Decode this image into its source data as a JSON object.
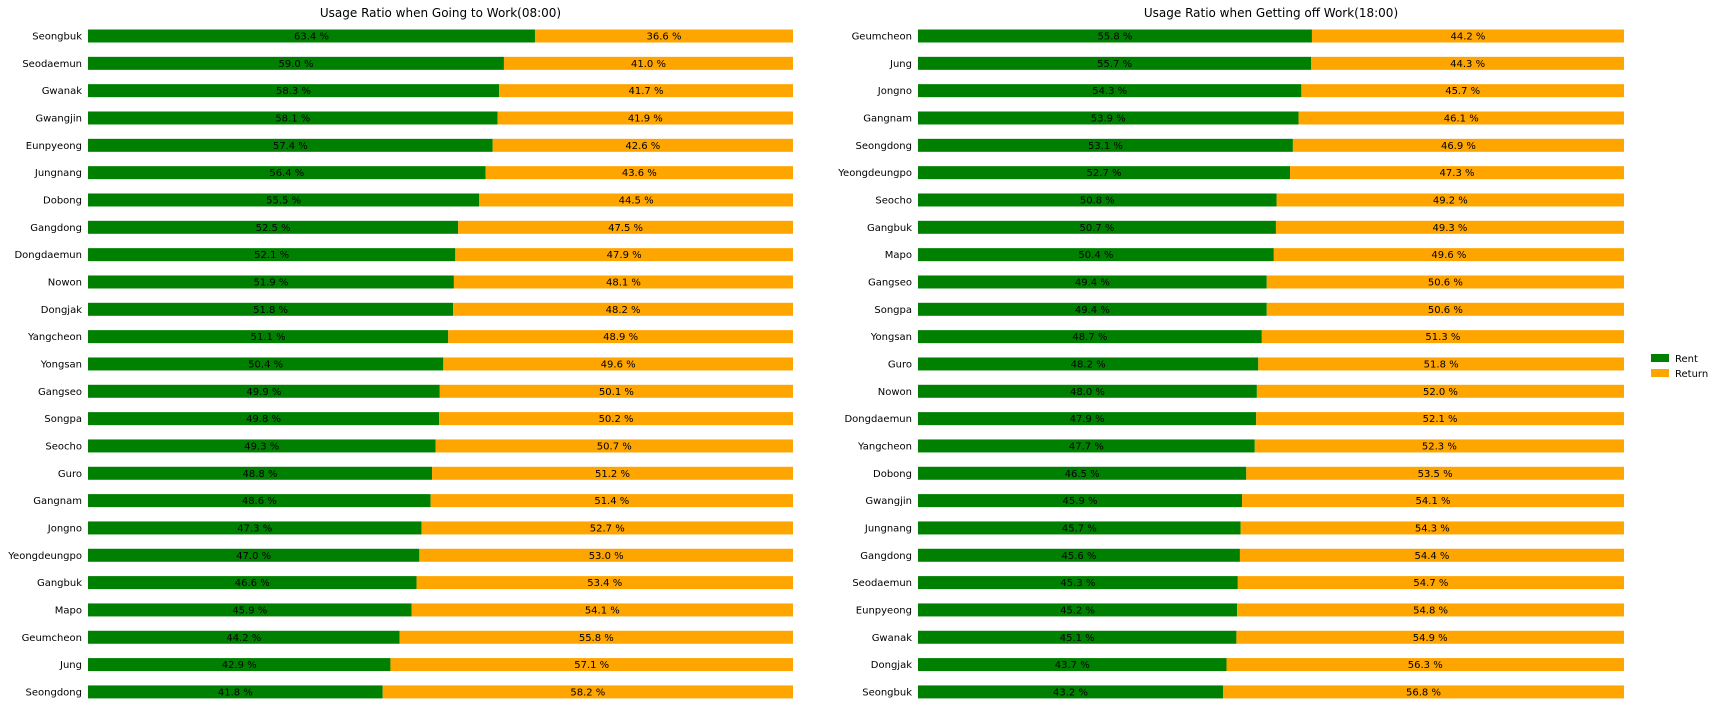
{
  "colors": {
    "rent": "#008000",
    "return": "#ffa500"
  },
  "legend": {
    "items": [
      "Rent",
      "Return"
    ]
  },
  "chart_data": [
    {
      "type": "bar",
      "orientation": "horizontal",
      "stacked": true,
      "title": "Usage Ratio when Going to Work(08:00)",
      "categories": [
        "Seongbuk",
        "Seodaemun",
        "Gwanak",
        "Gwangjin",
        "Eunpyeong",
        "Jungnang",
        "Dobong",
        "Gangdong",
        "Dongdaemun",
        "Nowon",
        "Dongjak",
        "Yangcheon",
        "Yongsan",
        "Gangseo",
        "Songpa",
        "Seocho",
        "Guro",
        "Gangnam",
        "Jongno",
        "Yeongdeungpo",
        "Gangbuk",
        "Mapo",
        "Geumcheon",
        "Jung",
        "Seongdong"
      ],
      "series": [
        {
          "name": "Rent",
          "values": [
            63.4,
            59.0,
            58.3,
            58.1,
            57.4,
            56.4,
            55.5,
            52.5,
            52.1,
            51.9,
            51.8,
            51.1,
            50.4,
            49.9,
            49.8,
            49.3,
            48.8,
            48.6,
            47.3,
            47.0,
            46.6,
            45.9,
            44.2,
            42.9,
            41.8
          ]
        },
        {
          "name": "Return",
          "values": [
            36.6,
            41.0,
            41.7,
            41.9,
            42.6,
            43.6,
            44.5,
            47.5,
            47.9,
            48.1,
            48.2,
            48.9,
            49.6,
            50.1,
            50.2,
            50.7,
            51.2,
            51.4,
            52.7,
            53.0,
            53.4,
            54.1,
            55.8,
            57.1,
            58.2
          ]
        }
      ],
      "xlim": [
        0,
        100
      ],
      "data_label_suffix": " %",
      "axes_visible": false,
      "grid": false
    },
    {
      "type": "bar",
      "orientation": "horizontal",
      "stacked": true,
      "title": "Usage Ratio when Getting off Work(18:00)",
      "categories": [
        "Geumcheon",
        "Jung",
        "Jongno",
        "Gangnam",
        "Seongdong",
        "Yeongdeungpo",
        "Seocho",
        "Gangbuk",
        "Mapo",
        "Gangseo",
        "Songpa",
        "Yongsan",
        "Guro",
        "Nowon",
        "Dongdaemun",
        "Yangcheon",
        "Dobong",
        "Gwangjin",
        "Jungnang",
        "Gangdong",
        "Seodaemun",
        "Eunpyeong",
        "Gwanak",
        "Dongjak",
        "Seongbuk"
      ],
      "series": [
        {
          "name": "Rent",
          "values": [
            55.8,
            55.7,
            54.3,
            53.9,
            53.1,
            52.7,
            50.8,
            50.7,
            50.4,
            49.4,
            49.4,
            48.7,
            48.2,
            48.0,
            47.9,
            47.7,
            46.5,
            45.9,
            45.7,
            45.6,
            45.3,
            45.2,
            45.1,
            43.7,
            43.2
          ]
        },
        {
          "name": "Return",
          "values": [
            44.2,
            44.3,
            45.7,
            46.1,
            46.9,
            47.3,
            49.2,
            49.3,
            49.6,
            50.6,
            50.6,
            51.3,
            51.8,
            52.0,
            52.1,
            52.3,
            53.5,
            54.1,
            54.3,
            54.4,
            54.7,
            54.8,
            54.9,
            56.3,
            56.8
          ]
        }
      ],
      "xlim": [
        0,
        100
      ],
      "data_label_suffix": " %",
      "axes_visible": false,
      "grid": false,
      "legend_position": "right"
    }
  ]
}
